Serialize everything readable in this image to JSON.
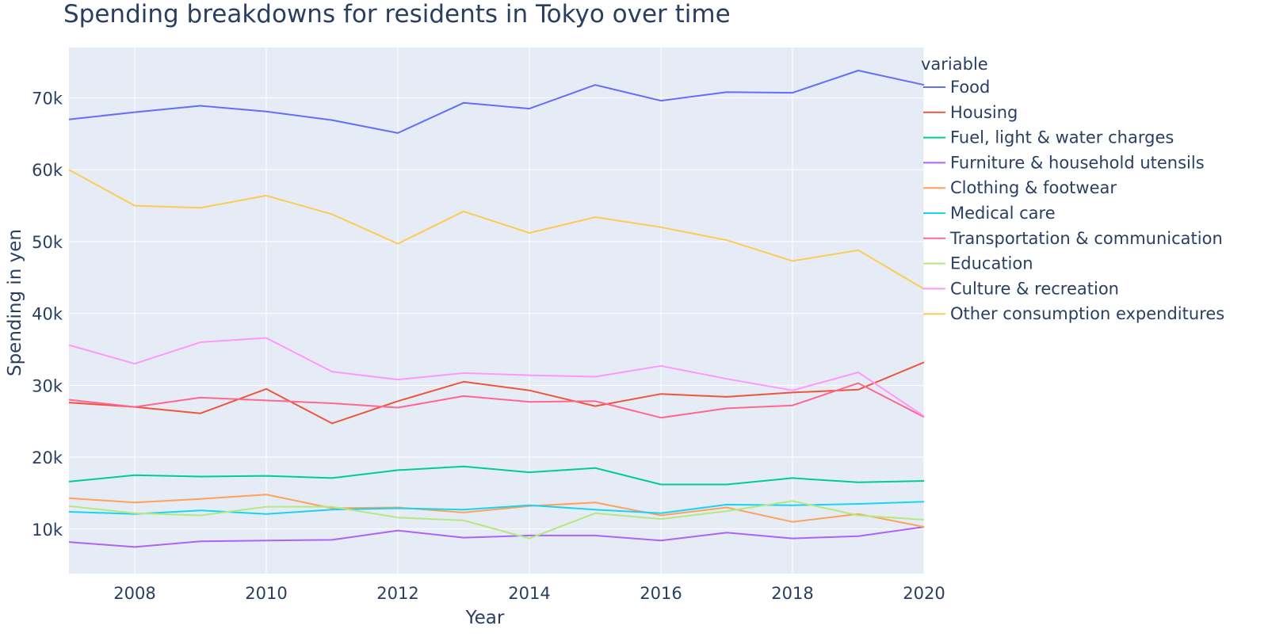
{
  "chart_data": {
    "type": "line",
    "title": "Spending breakdowns for residents in Tokyo over time",
    "xlabel": "Year",
    "ylabel": "Spending in yen",
    "x": [
      2007,
      2008,
      2009,
      2010,
      2011,
      2012,
      2013,
      2014,
      2015,
      2016,
      2017,
      2018,
      2019,
      2020
    ],
    "xlim": [
      2007,
      2020
    ],
    "ylim": [
      3800,
      77000
    ],
    "x_ticks": [
      2008,
      2010,
      2012,
      2014,
      2016,
      2018,
      2020
    ],
    "x_tick_labels": [
      "2008",
      "2010",
      "2012",
      "2014",
      "2016",
      "2018",
      "2020"
    ],
    "y_ticks": [
      10000,
      20000,
      30000,
      40000,
      50000,
      60000,
      70000
    ],
    "y_tick_labels": [
      "10k",
      "20k",
      "30k",
      "40k",
      "50k",
      "60k",
      "70k"
    ],
    "grid": true,
    "legend_title": "variable",
    "legend_position": "right",
    "plot_background": "#e5ecf6",
    "series": [
      {
        "name": "Food",
        "color": "#636efa",
        "values": [
          67000,
          68000,
          68900,
          68100,
          66900,
          65100,
          69300,
          68500,
          71800,
          69600,
          70800,
          70700,
          73800,
          71800
        ]
      },
      {
        "name": "Housing",
        "color": "#ef553b",
        "values": [
          27600,
          27000,
          26100,
          29500,
          24700,
          27800,
          30500,
          29300,
          27100,
          28800,
          28400,
          29000,
          29400,
          33200
        ]
      },
      {
        "name": "Fuel, light & water charges",
        "color": "#00cc96",
        "values": [
          16600,
          17500,
          17300,
          17400,
          17100,
          18200,
          18700,
          17900,
          18500,
          16200,
          16200,
          17100,
          16500,
          16700
        ]
      },
      {
        "name": "Furniture & household utensils",
        "color": "#ab63fa",
        "values": [
          8200,
          7500,
          8300,
          8400,
          8500,
          9800,
          8800,
          9100,
          9100,
          8400,
          9500,
          8700,
          9000,
          10300
        ]
      },
      {
        "name": "Clothing & footwear",
        "color": "#ffa15a",
        "values": [
          14300,
          13700,
          14200,
          14800,
          12900,
          13000,
          12300,
          13200,
          13700,
          11900,
          13000,
          11000,
          12100,
          10300
        ]
      },
      {
        "name": "Medical care",
        "color": "#19d3f3",
        "values": [
          12400,
          12100,
          12600,
          12100,
          12700,
          12900,
          12700,
          13300,
          12700,
          12200,
          13400,
          13300,
          13500,
          13800
        ]
      },
      {
        "name": "Transportation & communication",
        "color": "#ff6692",
        "values": [
          28000,
          27000,
          28300,
          27900,
          27500,
          26900,
          28500,
          27700,
          27800,
          25500,
          26800,
          27200,
          30300,
          25600
        ]
      },
      {
        "name": "Education",
        "color": "#b6e880",
        "values": [
          13200,
          12200,
          11900,
          13100,
          13100,
          11600,
          11200,
          8700,
          12200,
          11400,
          12500,
          13900,
          11900,
          11300
        ]
      },
      {
        "name": "Culture & recreation",
        "color": "#ff97ff",
        "values": [
          35600,
          33000,
          36000,
          36600,
          31900,
          30800,
          31700,
          31400,
          31200,
          32700,
          30900,
          29300,
          31800,
          25700
        ]
      },
      {
        "name": "Other consumption expenditures",
        "color": "#fecb52",
        "values": [
          60000,
          55000,
          54700,
          56400,
          53800,
          49700,
          54200,
          51200,
          53400,
          52000,
          50200,
          47300,
          48800,
          43400
        ]
      }
    ]
  }
}
